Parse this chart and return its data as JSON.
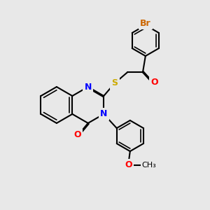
{
  "bg_color": "#e8e8e8",
  "bond_color": "#000000",
  "bond_lw": 1.5,
  "inner_lw": 1.2,
  "atom_colors": {
    "N": "#0000ff",
    "O": "#ff0000",
    "S": "#ccaa00",
    "Br": "#cc6600"
  },
  "figsize": [
    3.0,
    3.0
  ],
  "dpi": 100
}
